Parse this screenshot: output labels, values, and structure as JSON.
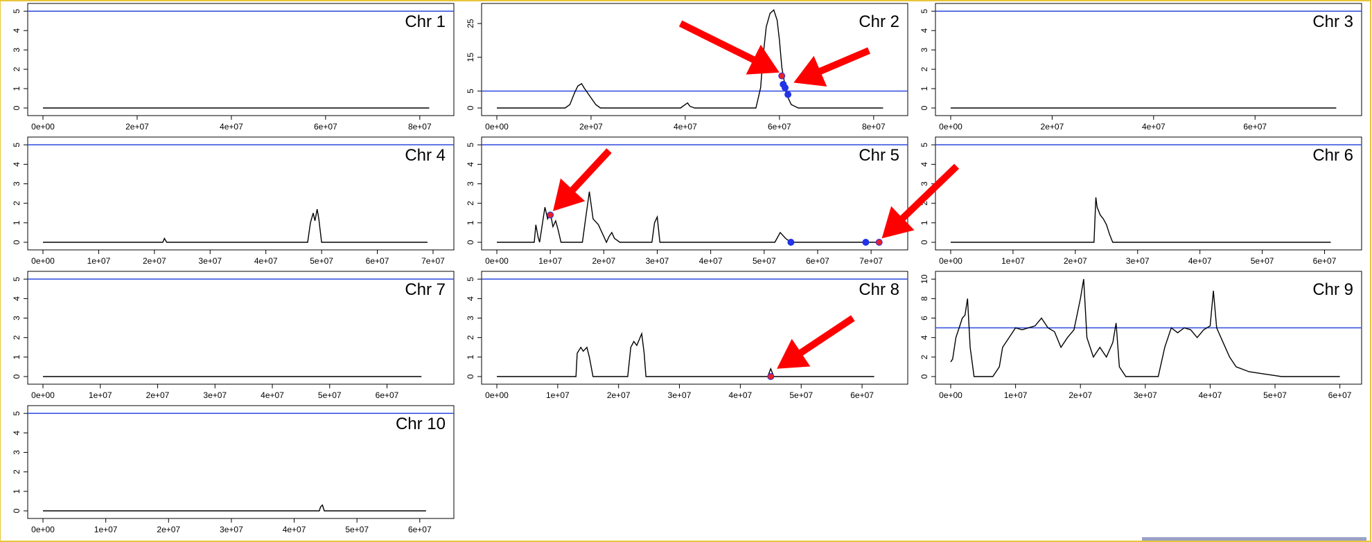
{
  "chart_data": [
    {
      "type": "line",
      "label": "Chr 1",
      "xticks": [
        "0e+00",
        "2e+07",
        "4e+07",
        "6e+07",
        "8e+07"
      ],
      "xtick_values": [
        0,
        20000000.0,
        40000000.0,
        60000000.0,
        80000000.0
      ],
      "xlim": [
        0,
        84000000.0
      ],
      "yticks": [
        "0",
        "1",
        "2",
        "3",
        "4",
        "5"
      ],
      "ytick_values": [
        0,
        1,
        2,
        3,
        4,
        5
      ],
      "ylim": [
        0,
        5.15
      ],
      "threshold": 5,
      "x": [
        0,
        82000000.0
      ],
      "y": [
        0,
        0
      ],
      "points": [],
      "arrows": []
    },
    {
      "type": "line",
      "label": "Chr 2",
      "xticks": [
        "0e+00",
        "2e+07",
        "4e+07",
        "6e+07",
        "8e+07"
      ],
      "xtick_values": [
        0,
        20000000.0,
        40000000.0,
        60000000.0,
        80000000.0
      ],
      "xlim": [
        0,
        84000000.0
      ],
      "yticks": [
        "0",
        "5",
        "15",
        "25"
      ],
      "ytick_values": [
        0,
        5,
        15,
        25
      ],
      "ylim": [
        0,
        29.5
      ],
      "threshold": 5,
      "x": [
        0,
        14500000.0,
        15500000.0,
        16500000.0,
        17200000.0,
        18000000.0,
        18500000.0,
        19000000.0,
        20000000.0,
        21000000.0,
        22000000.0,
        25000000.0,
        39000000.0,
        40000000.0,
        40500000.0,
        41000000.0,
        42000000.0,
        55000000.0,
        56000000.0,
        56500000.0,
        57200000.0,
        58000000.0,
        58800000.0,
        59500000.0,
        60000000.0,
        60500000.0,
        61000000.0,
        61500000.0,
        62500000.0,
        64000000.0,
        82000000.0
      ],
      "y": [
        0,
        0,
        1,
        4.5,
        6.5,
        7.2,
        6,
        5,
        3,
        1,
        0,
        0,
        0,
        1,
        1.5,
        0.5,
        0,
        0,
        6,
        15,
        24,
        28,
        29,
        26,
        20,
        12,
        8,
        4,
        1,
        0,
        0
      ],
      "points": [
        {
          "x": 60500000.0,
          "y": 9.5,
          "color": "red"
        },
        {
          "x": 60800000.0,
          "y": 7,
          "color": "blue"
        },
        {
          "x": 61200000.0,
          "y": 6,
          "color": "blue"
        },
        {
          "x": 61800000.0,
          "y": 4,
          "color": "blue"
        }
      ],
      "arrows": [
        {
          "from": [
            39000000.0,
            25
          ],
          "to": [
            60000000.0,
            10.5
          ]
        },
        {
          "from": [
            79000000.0,
            17
          ],
          "to": [
            63000000.0,
            7.5
          ]
        }
      ]
    },
    {
      "type": "line",
      "label": "Chr 3",
      "xticks": [
        "0e+00",
        "2e+07",
        "4e+07",
        "6e+07"
      ],
      "xtick_values": [
        0,
        20000000.0,
        40000000.0,
        60000000.0
      ],
      "xlim": [
        0,
        78000000.0
      ],
      "yticks": [
        "0",
        "1",
        "2",
        "3",
        "4",
        "5"
      ],
      "ytick_values": [
        0,
        1,
        2,
        3,
        4,
        5
      ],
      "ylim": [
        0,
        5.15
      ],
      "threshold": 5,
      "x": [
        0,
        76000000.0
      ],
      "y": [
        0,
        0
      ],
      "points": [],
      "arrows": []
    },
    {
      "type": "line",
      "label": "Chr 4",
      "xticks": [
        "0e+00",
        "1e+07",
        "2e+07",
        "3e+07",
        "4e+07",
        "5e+07",
        "6e+07",
        "7e+07"
      ],
      "xtick_values": [
        0,
        10000000.0,
        20000000.0,
        30000000.0,
        40000000.0,
        50000000.0,
        60000000.0,
        70000000.0
      ],
      "xlim": [
        0,
        71000000.0
      ],
      "yticks": [
        "0",
        "1",
        "2",
        "3",
        "4",
        "5"
      ],
      "ytick_values": [
        0,
        1,
        2,
        3,
        4,
        5
      ],
      "ylim": [
        0,
        5.15
      ],
      "threshold": 5,
      "x": [
        0,
        21500000.0,
        21800000.0,
        22200000.0,
        47500000.0,
        48000000.0,
        48500000.0,
        48800000.0,
        49200000.0,
        49500000.0,
        50000000.0,
        69000000.0
      ],
      "y": [
        0,
        0,
        0.2,
        0,
        0,
        1,
        1.5,
        1.1,
        1.7,
        1.2,
        0,
        0
      ],
      "points": [],
      "arrows": []
    },
    {
      "type": "line",
      "label": "Chr 5",
      "xticks": [
        "0e+00",
        "1e+07",
        "2e+07",
        "3e+07",
        "4e+07",
        "5e+07",
        "6e+07",
        "7e+07"
      ],
      "xtick_values": [
        0,
        10000000.0,
        20000000.0,
        30000000.0,
        40000000.0,
        50000000.0,
        60000000.0,
        70000000.0
      ],
      "xlim": [
        0,
        74000000.0
      ],
      "yticks": [
        "0",
        "1",
        "2",
        "3",
        "4",
        "5"
      ],
      "ytick_values": [
        0,
        1,
        2,
        3,
        4,
        5
      ],
      "ylim": [
        0,
        5.15
      ],
      "threshold": 5,
      "x": [
        0,
        7000000.0,
        7300000.0,
        7700000.0,
        8000000.0,
        9000000.0,
        9500000.0,
        10000000.0,
        10500000.0,
        11000000.0,
        11500000.0,
        12000000.0,
        16000000.0,
        16500000.0,
        17000000.0,
        17300000.0,
        18000000.0,
        19000000.0,
        20500000.0,
        21000000.0,
        21500000.0,
        22000000.0,
        23000000.0,
        29000000.0,
        29500000.0,
        30000000.0,
        30500000.0,
        52000000.0,
        53000000.0,
        54000000.0,
        55000000.0,
        72000000.0
      ],
      "y": [
        0,
        0,
        0.9,
        0.3,
        0,
        1.8,
        1.2,
        1.5,
        0.8,
        1.1,
        0.6,
        0,
        0,
        1,
        2,
        2.6,
        1.2,
        0.9,
        0,
        0.3,
        0.5,
        0.2,
        0,
        0,
        1,
        1.3,
        0,
        0,
        0.5,
        0.2,
        0,
        0
      ],
      "points": [
        {
          "x": 10000000.0,
          "y": 1.4,
          "color": "red"
        },
        {
          "x": 55000000.0,
          "y": 0,
          "color": "blue"
        },
        {
          "x": 69000000.0,
          "y": 0,
          "color": "blue"
        },
        {
          "x": 71500000.0,
          "y": 0,
          "color": "red"
        }
      ],
      "arrows": [
        {
          "from": [
            21000000.0,
            4.7
          ],
          "to": [
            10500000.0,
            1.6
          ]
        },
        {
          "from": [
            86000000.0,
            3.9
          ],
          "to": [
            72000000.0,
            0.2
          ]
        }
      ]
    },
    {
      "type": "line",
      "label": "Chr 6",
      "xticks": [
        "0e+00",
        "1e+07",
        "2e+07",
        "3e+07",
        "4e+07",
        "5e+07",
        "6e+07"
      ],
      "xtick_values": [
        0,
        10000000.0,
        20000000.0,
        30000000.0,
        40000000.0,
        50000000.0,
        60000000.0
      ],
      "xlim": [
        0,
        63500000.0
      ],
      "yticks": [
        "0",
        "1",
        "2",
        "3",
        "4",
        "5"
      ],
      "ytick_values": [
        0,
        1,
        2,
        3,
        4,
        5
      ],
      "ylim": [
        0,
        5.15
      ],
      "threshold": 5,
      "x": [
        0,
        23000000.0,
        23300000.0,
        23500000.0,
        24000000.0,
        24500000.0,
        25000000.0,
        25500000.0,
        26000000.0,
        61000000.0
      ],
      "y": [
        0,
        0,
        2.3,
        1.8,
        1.4,
        1.2,
        0.9,
        0.4,
        0,
        0
      ],
      "points": [],
      "arrows": []
    },
    {
      "type": "line",
      "label": "Chr 7",
      "xticks": [
        "0e+00",
        "1e+07",
        "2e+07",
        "3e+07",
        "4e+07",
        "5e+07",
        "6e+07"
      ],
      "xtick_values": [
        0,
        10000000.0,
        20000000.0,
        30000000.0,
        40000000.0,
        50000000.0,
        60000000.0
      ],
      "xlim": [
        0,
        69000000.0
      ],
      "yticks": [
        "0",
        "1",
        "2",
        "3",
        "4",
        "5"
      ],
      "ytick_values": [
        0,
        1,
        2,
        3,
        4,
        5
      ],
      "ylim": [
        0,
        5.15
      ],
      "threshold": 5,
      "x": [
        0,
        66000000.0
      ],
      "y": [
        0,
        0
      ],
      "points": [],
      "arrows": []
    },
    {
      "type": "line",
      "label": "Chr 8",
      "xticks": [
        "0e+00",
        "1e+07",
        "2e+07",
        "3e+07",
        "4e+07",
        "5e+07",
        "6e+07"
      ],
      "xtick_values": [
        0,
        10000000.0,
        20000000.0,
        30000000.0,
        40000000.0,
        50000000.0,
        60000000.0
      ],
      "xlim": [
        0,
        65000000.0
      ],
      "yticks": [
        "0",
        "1",
        "2",
        "3",
        "4",
        "5"
      ],
      "ytick_values": [
        0,
        1,
        2,
        3,
        4,
        5
      ],
      "ylim": [
        0,
        5.15
      ],
      "threshold": 5,
      "x": [
        0,
        13000000.0,
        13200000.0,
        13800000.0,
        14200000.0,
        14800000.0,
        15200000.0,
        15800000.0,
        21500000.0,
        22000000.0,
        22500000.0,
        23000000.0,
        23800000.0,
        24200000.0,
        24500000.0,
        44500000.0,
        45000000.0,
        45500000.0,
        62000000.0
      ],
      "y": [
        0,
        0,
        1.2,
        1.5,
        1.3,
        1.5,
        1,
        0,
        0,
        1.5,
        1.8,
        1.6,
        2.2,
        1.2,
        0,
        0,
        0.4,
        0,
        0
      ],
      "points": [
        {
          "x": 45000000.0,
          "y": 0,
          "color": "red"
        }
      ],
      "arrows": [
        {
          "from": [
            58500000.0,
            3.0
          ],
          "to": [
            46000000.0,
            0.4
          ]
        }
      ]
    },
    {
      "type": "line",
      "label": "Chr 9",
      "xticks": [
        "0e+00",
        "1e+07",
        "2e+07",
        "3e+07",
        "4e+07",
        "5e+07",
        "6e+07"
      ],
      "xtick_values": [
        0,
        10000000.0,
        20000000.0,
        30000000.0,
        40000000.0,
        50000000.0,
        60000000.0
      ],
      "xlim": [
        0,
        61000000.0
      ],
      "yticks": [
        "0",
        "2",
        "4",
        "6",
        "8",
        "10"
      ],
      "ytick_values": [
        0,
        2,
        4,
        6,
        8,
        10
      ],
      "ylim": [
        0,
        10.3
      ],
      "threshold": 5,
      "x": [
        0,
        300000.0,
        800000.0,
        1300000.0,
        1800000.0,
        2200000.0,
        2600000.0,
        3000000.0,
        3300000.0,
        3600000.0,
        4200000.0,
        5000000.0,
        6500000.0,
        7500000.0,
        8000000.0,
        9000000.0,
        10000000.0,
        11000000.0,
        12000000.0,
        13000000.0,
        14000000.0,
        15000000.0,
        16000000.0,
        17000000.0,
        18000000.0,
        19000000.0,
        20000000.0,
        20500000.0,
        21000000.0,
        22000000.0,
        23000000.0,
        24000000.0,
        25000000.0,
        25500000.0,
        26000000.0,
        27000000.0,
        32000000.0,
        33000000.0,
        34000000.0,
        35000000.0,
        36000000.0,
        37000000.0,
        38000000.0,
        39000000.0,
        40000000.0,
        40500000.0,
        41000000.0,
        42000000.0,
        43000000.0,
        44000000.0,
        46000000.0,
        48000000.0,
        50000000.0,
        51000000.0,
        60000000.0
      ],
      "y": [
        1.5,
        1.8,
        4,
        5,
        6,
        6.3,
        8,
        3,
        1.5,
        0,
        0,
        0,
        0,
        1,
        3,
        4,
        5,
        4.8,
        5,
        5.2,
        6,
        5,
        4.6,
        3,
        4,
        4.8,
        8,
        10,
        4,
        2,
        3,
        2,
        3.5,
        5.5,
        1,
        0,
        0,
        3,
        5,
        4.5,
        5,
        4.8,
        4,
        4.8,
        5.2,
        8.8,
        5,
        3.5,
        2,
        1,
        0.5,
        0.3,
        0.1,
        0,
        0
      ],
      "points": [],
      "arrows": []
    },
    {
      "type": "line",
      "label": "Chr 10",
      "xticks": [
        "0e+00",
        "1e+07",
        "2e+07",
        "3e+07",
        "4e+07",
        "5e+07",
        "6e+07"
      ],
      "xtick_values": [
        0,
        10000000.0,
        20000000.0,
        30000000.0,
        40000000.0,
        50000000.0,
        60000000.0
      ],
      "xlim": [
        0,
        63000000.0
      ],
      "yticks": [
        "0",
        "1",
        "2",
        "3",
        "4",
        "5"
      ],
      "ytick_values": [
        0,
        1,
        2,
        3,
        4,
        5
      ],
      "ylim": [
        0,
        5.15
      ],
      "threshold": 5,
      "x": [
        0,
        44000000.0,
        44200000.0,
        44500000.0,
        44800000.0,
        61000000.0
      ],
      "y": [
        0,
        0,
        0.2,
        0.3,
        0,
        0
      ],
      "points": [],
      "arrows": []
    }
  ],
  "colors": {
    "trace": "#000000",
    "threshold": "#3a55e0",
    "arrow": "#ff0000",
    "point_red": "#e8202a",
    "point_blue": "#2233e8",
    "frame": "#e8c53a"
  }
}
